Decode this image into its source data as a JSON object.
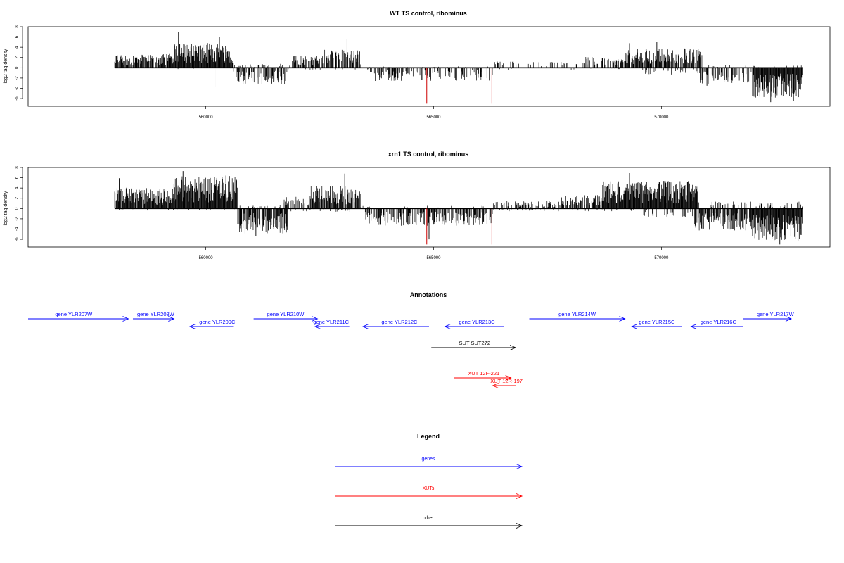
{
  "chart_data": [
    {
      "type": "bar",
      "title": "WT TS control, ribominus",
      "ylabel": "log2 tag density",
      "xlim": [
        556100,
        573700
      ],
      "ylim": [
        -7.5,
        8
      ],
      "yticks": [
        -6,
        -4,
        -2,
        0,
        2,
        4,
        6,
        8
      ],
      "xticks": [
        560000,
        565000,
        570000
      ],
      "grid": false,
      "profile": {
        "x_start": 558000,
        "x_end": 573100,
        "plus_segments": [
          {
            "from": 558000,
            "to": 559300,
            "level": 2,
            "density": 0.8
          },
          {
            "from": 559300,
            "to": 560600,
            "level": 3.6,
            "density": 1.0
          },
          {
            "from": 560600,
            "to": 561900,
            "level": 0.6,
            "density": 0.2
          },
          {
            "from": 561900,
            "to": 562600,
            "level": 1.8,
            "density": 0.7
          },
          {
            "from": 562600,
            "to": 563400,
            "level": 2.6,
            "density": 0.7
          },
          {
            "from": 563400,
            "to": 566300,
            "level": 0.2,
            "density": 0.05
          },
          {
            "from": 566300,
            "to": 568300,
            "level": 0.9,
            "density": 0.2
          },
          {
            "from": 568300,
            "to": 569200,
            "level": 1.6,
            "density": 0.5
          },
          {
            "from": 569200,
            "to": 570900,
            "level": 2.8,
            "density": 0.8
          },
          {
            "from": 570900,
            "to": 573100,
            "level": 0.4,
            "density": 0.1
          }
        ],
        "minus_segments": [
          {
            "from": 558000,
            "to": 560600,
            "level": 0.2,
            "density": 0.05
          },
          {
            "from": 560600,
            "to": 561800,
            "level": 2.4,
            "density": 0.6
          },
          {
            "from": 561800,
            "to": 563600,
            "level": 0.3,
            "density": 0.05
          },
          {
            "from": 563600,
            "to": 566300,
            "level": 1.9,
            "density": 0.4
          },
          {
            "from": 566300,
            "to": 569600,
            "level": 0.3,
            "density": 0.05
          },
          {
            "from": 569600,
            "to": 570800,
            "level": 1.0,
            "density": 0.2
          },
          {
            "from": 570800,
            "to": 572000,
            "level": 2.3,
            "density": 0.5
          },
          {
            "from": 572000,
            "to": 573100,
            "level": 4.4,
            "density": 1.0
          }
        ],
        "peaks": [
          {
            "x": 559400,
            "y": 7.0
          },
          {
            "x": 560300,
            "y": 6.0
          },
          {
            "x": 563100,
            "y": 5.6
          },
          {
            "x": 569300,
            "y": 4.8
          },
          {
            "x": 569900,
            "y": 5.1
          },
          {
            "x": 560200,
            "y": -3.8
          },
          {
            "x": 571000,
            "y": -3.5
          },
          {
            "x": 572400,
            "y": -6.7
          },
          {
            "x": 572900,
            "y": -6.5
          }
        ],
        "red_marks": [
          {
            "x": 564850,
            "y": -7.0
          },
          {
            "x": 566280,
            "y": -7.0
          }
        ]
      }
    },
    {
      "type": "bar",
      "title": "xrn1 TS control, ribominus",
      "ylabel": "log2 tag density",
      "xlim": [
        556100,
        573700
      ],
      "ylim": [
        -7.5,
        8
      ],
      "yticks": [
        -6,
        -4,
        -2,
        0,
        2,
        4,
        6,
        8
      ],
      "xticks": [
        560000,
        565000,
        570000
      ],
      "grid": false,
      "profile": {
        "x_start": 558000,
        "x_end": 573100,
        "plus_segments": [
          {
            "from": 558000,
            "to": 559300,
            "level": 3.0,
            "density": 0.9
          },
          {
            "from": 559300,
            "to": 560700,
            "level": 4.8,
            "density": 1.0
          },
          {
            "from": 560700,
            "to": 561700,
            "level": 0.5,
            "density": 0.15
          },
          {
            "from": 561700,
            "to": 562300,
            "level": 1.8,
            "density": 0.6
          },
          {
            "from": 562300,
            "to": 563400,
            "level": 3.3,
            "density": 0.9
          },
          {
            "from": 563400,
            "to": 566300,
            "level": 0.4,
            "density": 0.1
          },
          {
            "from": 566300,
            "to": 567800,
            "level": 1.1,
            "density": 0.4
          },
          {
            "from": 567800,
            "to": 568700,
            "level": 2.1,
            "density": 0.7
          },
          {
            "from": 568700,
            "to": 570800,
            "level": 4.0,
            "density": 1.0
          },
          {
            "from": 570800,
            "to": 573100,
            "level": 1.0,
            "density": 0.2
          }
        ],
        "minus_segments": [
          {
            "from": 558000,
            "to": 560700,
            "level": 0.3,
            "density": 0.05
          },
          {
            "from": 560700,
            "to": 561800,
            "level": 3.6,
            "density": 0.8
          },
          {
            "from": 561800,
            "to": 563500,
            "level": 0.5,
            "density": 0.1
          },
          {
            "from": 563500,
            "to": 566300,
            "level": 2.5,
            "density": 0.6
          },
          {
            "from": 566300,
            "to": 569600,
            "level": 0.4,
            "density": 0.1
          },
          {
            "from": 569600,
            "to": 570700,
            "level": 1.3,
            "density": 0.3
          },
          {
            "from": 570700,
            "to": 572000,
            "level": 3.2,
            "density": 0.7
          },
          {
            "from": 572000,
            "to": 573100,
            "level": 4.6,
            "density": 1.0
          }
        ],
        "peaks": [
          {
            "x": 559500,
            "y": 7.3
          },
          {
            "x": 563050,
            "y": 6.8
          },
          {
            "x": 569300,
            "y": 6.9
          },
          {
            "x": 558100,
            "y": 5.9
          },
          {
            "x": 561100,
            "y": -5.4
          },
          {
            "x": 564900,
            "y": -6.0
          },
          {
            "x": 572600,
            "y": -7.0
          },
          {
            "x": 573000,
            "y": -6.3
          }
        ],
        "red_marks": [
          {
            "x": 564850,
            "y": -7.0
          },
          {
            "x": 566280,
            "y": -7.0
          }
        ]
      }
    }
  ],
  "annotations": {
    "title": "Annotations",
    "xlim": [
      556100,
      573700
    ],
    "items": [
      {
        "label": "gene YLR207W",
        "from": 556100,
        "to": 558300,
        "dir": "right",
        "row": 0,
        "kind": "gene",
        "label_x": 557100
      },
      {
        "label": "gene YLR208W",
        "from": 558400,
        "to": 559300,
        "dir": "right",
        "row": 0,
        "kind": "gene",
        "label_x": 558900
      },
      {
        "label": "gene YLR209C",
        "from": 559650,
        "to": 560600,
        "dir": "left",
        "row": 1,
        "kind": "gene",
        "label_x": 560250
      },
      {
        "label": "gene YLR210W",
        "from": 561050,
        "to": 562450,
        "dir": "right",
        "row": 0,
        "kind": "gene",
        "label_x": 561750
      },
      {
        "label": "gene YLR211C",
        "from": 562400,
        "to": 563150,
        "dir": "left",
        "row": 1,
        "kind": "gene",
        "label_x": 562750
      },
      {
        "label": "gene YLR212C",
        "from": 563450,
        "to": 564900,
        "dir": "left",
        "row": 1,
        "kind": "gene",
        "label_x": 564250
      },
      {
        "label": "gene YLR213C",
        "from": 565250,
        "to": 566550,
        "dir": "left",
        "row": 1,
        "kind": "gene",
        "label_x": 565950
      },
      {
        "label": "gene YLR214W",
        "from": 567100,
        "to": 569200,
        "dir": "right",
        "row": 0,
        "kind": "gene",
        "label_x": 568150
      },
      {
        "label": "gene YLR215C",
        "from": 569350,
        "to": 570450,
        "dir": "left",
        "row": 1,
        "kind": "gene",
        "label_x": 569900
      },
      {
        "label": "gene YLR216C",
        "from": 570650,
        "to": 571800,
        "dir": "left",
        "row": 1,
        "kind": "gene",
        "label_x": 571250
      },
      {
        "label": "gene YLR217W",
        "from": 571800,
        "to": 572850,
        "dir": "right",
        "row": 0,
        "kind": "gene",
        "label_x": 572500
      },
      {
        "label": "SUT SUT272",
        "from": 564950,
        "to": 566800,
        "dir": "right",
        "row": 2,
        "kind": "other",
        "label_x": 565900
      },
      {
        "label": "XUT 12F-221",
        "from": 565450,
        "to": 566700,
        "dir": "right",
        "row": 3,
        "kind": "xut",
        "label_x": 566100
      },
      {
        "label": "XUT 12R-197",
        "from": 566300,
        "to": 566800,
        "dir": "left",
        "row": 4,
        "kind": "xut",
        "label_x": 566600
      }
    ]
  },
  "legend": {
    "title": "Legend",
    "items": [
      {
        "label": "genes",
        "kind": "gene"
      },
      {
        "label": "XUTs",
        "kind": "xut"
      },
      {
        "label": "other",
        "kind": "other"
      }
    ]
  },
  "colors": {
    "gene": "#0000ff",
    "xut": "#ff0000",
    "other": "#000000",
    "bars": "#000000",
    "marks": "#cc0000",
    "frame": "#000000"
  }
}
